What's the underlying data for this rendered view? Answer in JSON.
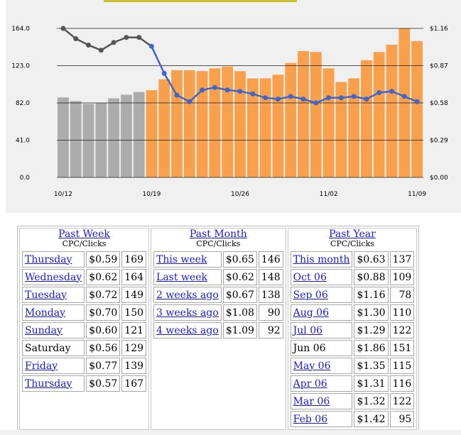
{
  "chart_data": {
    "type": "bar+line",
    "x_tick_labels": [
      "10/12",
      "10/19",
      "10/26",
      "11/02",
      "11/09"
    ],
    "y_left_ticks": [
      "164.0",
      "123.0",
      "82.0",
      "41.0",
      "0.0"
    ],
    "y_right_ticks": [
      "$1.16",
      "$0.87",
      "$0.58",
      "$0.29",
      "$0.00"
    ],
    "ylim_left": [
      0,
      164
    ],
    "ylim_right": [
      0,
      1.16
    ],
    "days": 29,
    "highlight_start_index": 7,
    "series": [
      {
        "kind": "bar",
        "axis": "left",
        "values": [
          88,
          84,
          81,
          82,
          87,
          91,
          94,
          96,
          108,
          118,
          118,
          117,
          120,
          122,
          117,
          109,
          109,
          113,
          126,
          139,
          138,
          120,
          105,
          109,
          129,
          138,
          146,
          164,
          150
        ]
      },
      {
        "kind": "line",
        "axis": "right",
        "values": [
          1.16,
          1.08,
          1.03,
          0.99,
          1.05,
          1.09,
          1.09,
          1.02,
          0.81,
          0.64,
          0.59,
          0.68,
          0.7,
          0.68,
          0.67,
          0.65,
          0.62,
          0.61,
          0.63,
          0.61,
          0.58,
          0.62,
          0.62,
          0.63,
          0.61,
          0.66,
          0.67,
          0.63,
          0.59
        ]
      }
    ],
    "colors": {
      "bar_past": "#acacac",
      "bar_recent": "#f9a04c",
      "line": "#3f66c8",
      "line_past": "#555555",
      "grid": "#1e1e1e"
    }
  },
  "stats": {
    "sub_label": "CPC/Clicks",
    "columns": [
      {
        "title": "Past Week",
        "rows": [
          {
            "label": "Thursday",
            "linked": true,
            "cpc": "$0.59",
            "clicks": "169"
          },
          {
            "label": "Wednesday",
            "linked": true,
            "cpc": "$0.62",
            "clicks": "164"
          },
          {
            "label": "Tuesday",
            "linked": true,
            "cpc": "$0.72",
            "clicks": "149"
          },
          {
            "label": "Monday",
            "linked": true,
            "cpc": "$0.70",
            "clicks": "150"
          },
          {
            "label": "Sunday",
            "linked": true,
            "cpc": "$0.60",
            "clicks": "121"
          },
          {
            "label": "Saturday",
            "linked": false,
            "cpc": "$0.56",
            "clicks": "129"
          },
          {
            "label": "Friday",
            "linked": true,
            "cpc": "$0.77",
            "clicks": "139"
          },
          {
            "label": "Thursday",
            "linked": true,
            "cpc": "$0.57",
            "clicks": "167"
          }
        ]
      },
      {
        "title": "Past Month",
        "rows": [
          {
            "label": "This week",
            "linked": true,
            "cpc": "$0.65",
            "clicks": "146"
          },
          {
            "label": "Last week",
            "linked": true,
            "cpc": "$0.62",
            "clicks": "148"
          },
          {
            "label": "2 weeks ago",
            "linked": true,
            "cpc": "$0.67",
            "clicks": "138"
          },
          {
            "label": "3 weeks ago",
            "linked": true,
            "cpc": "$1.08",
            "clicks": "90"
          },
          {
            "label": "4 weeks ago",
            "linked": true,
            "cpc": "$1.09",
            "clicks": "92"
          }
        ]
      },
      {
        "title": "Past Year",
        "rows": [
          {
            "label": "This month",
            "linked": true,
            "cpc": "$0.63",
            "clicks": "137"
          },
          {
            "label": "Oct 06",
            "linked": true,
            "cpc": "$0.88",
            "clicks": "109"
          },
          {
            "label": "Sep 06",
            "linked": true,
            "cpc": "$1.16",
            "clicks": "78"
          },
          {
            "label": "Aug 06",
            "linked": true,
            "cpc": "$1.30",
            "clicks": "110"
          },
          {
            "label": "Jul 06",
            "linked": true,
            "cpc": "$1.29",
            "clicks": "122"
          },
          {
            "label": "Jun 06",
            "linked": false,
            "cpc": "$1.86",
            "clicks": "151"
          },
          {
            "label": "May 06",
            "linked": true,
            "cpc": "$1.35",
            "clicks": "115"
          },
          {
            "label": "Apr 06",
            "linked": true,
            "cpc": "$1.31",
            "clicks": "116"
          },
          {
            "label": "Mar 06",
            "linked": true,
            "cpc": "$1.32",
            "clicks": "122"
          },
          {
            "label": "Feb 06",
            "linked": true,
            "cpc": "$1.42",
            "clicks": "95"
          }
        ]
      }
    ]
  }
}
